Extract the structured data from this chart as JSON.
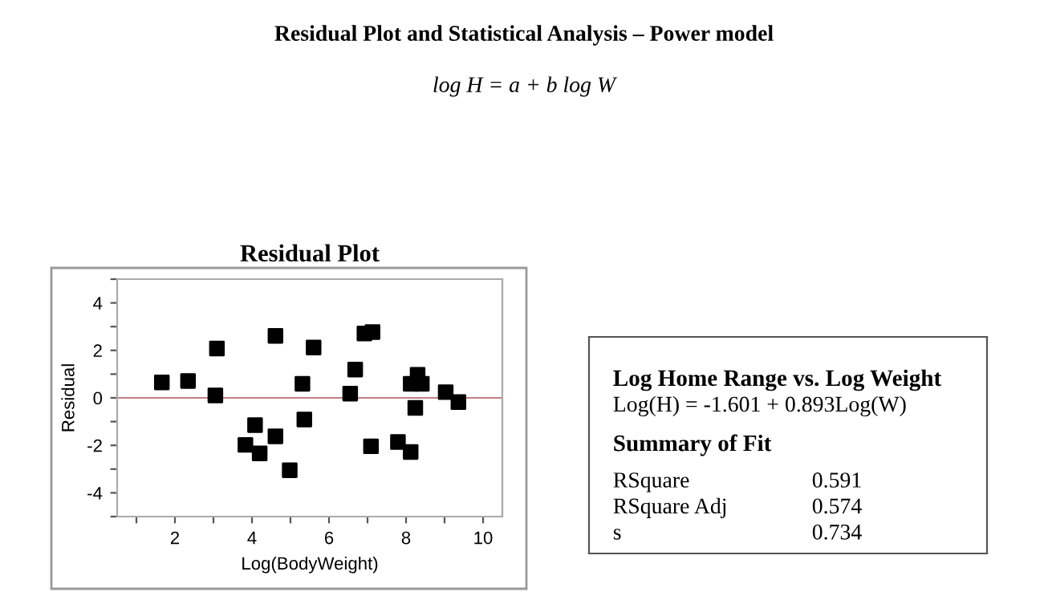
{
  "chart_data": [
    {
      "type": "scatter",
      "title": "Residual Plot",
      "xlabel": "Log(BodyWeight)",
      "ylabel": "Residual",
      "x": [
        1.66,
        2.34,
        3.09,
        3.05,
        3.83,
        4.08,
        4.2,
        4.61,
        4.61,
        4.98,
        5.31,
        5.36,
        5.6,
        6.55,
        6.68,
        6.92,
        7.13,
        7.09,
        7.79,
        8.12,
        8.3,
        8.41,
        8.24,
        8.12,
        9.03,
        9.36
      ],
      "values": [
        0.65,
        0.71,
        2.08,
        0.1,
        -1.98,
        -1.15,
        -2.34,
        2.61,
        -1.62,
        -3.05,
        0.59,
        -0.91,
        2.12,
        0.18,
        1.19,
        2.71,
        2.77,
        -2.04,
        -1.86,
        0.59,
        0.97,
        0.59,
        -0.42,
        -2.28,
        0.24,
        -0.18
      ],
      "color": "#000000",
      "marker": "square",
      "xlim": [
        0.5,
        10.5
      ],
      "ylim": [
        -5,
        5
      ],
      "xticks": [
        {
          "value": 1,
          "label": null
        },
        2,
        {
          "value": 3,
          "label": null
        },
        4,
        {
          "value": 5,
          "label": null
        },
        6,
        {
          "value": 7,
          "label": null
        },
        8,
        {
          "value": 9,
          "label": null
        },
        10
      ],
      "yticks": [
        {
          "value": -5,
          "label": null
        },
        -4,
        {
          "value": -3,
          "label": null
        },
        -2,
        {
          "value": -1,
          "label": null
        },
        0,
        {
          "value": 1,
          "label": null
        },
        2,
        {
          "value": 3,
          "label": null
        },
        4,
        {
          "value": 5,
          "label": null
        }
      ],
      "ref_lines": [
        {
          "axis": "y",
          "value": 0,
          "color": "#c08080"
        }
      ],
      "grid": false,
      "legend": false
    },
    {
      "type": "other",
      "title": "Residual Plot and Statistical Analysis – Power model",
      "subtitle": "log H = a + b log W",
      "annotations": [
        "Log Home Range vs. Log Weight",
        "Log(H) = -1.601 + 0.893Log(W)",
        "Summary of Fit",
        "RSquare",
        "0.591",
        "RSquare Adj",
        "0.574",
        "s",
        "0.734"
      ]
    }
  ]
}
